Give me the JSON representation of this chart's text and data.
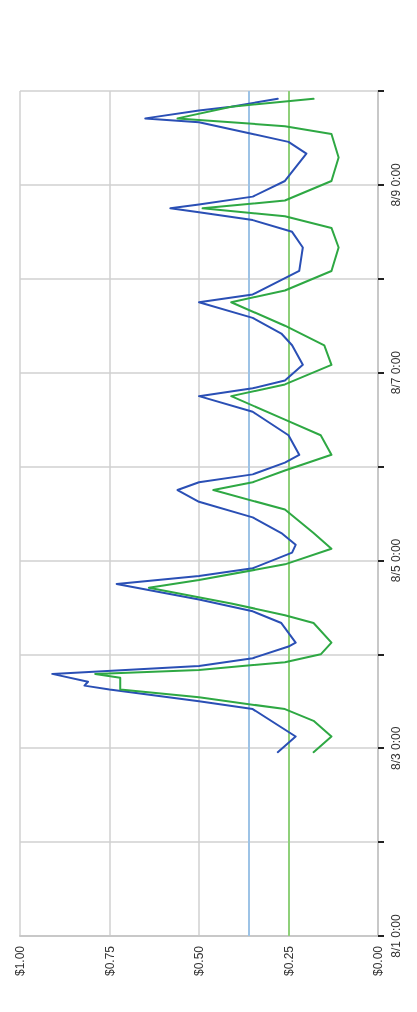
{
  "chart_data": {
    "type": "line",
    "orientation": "horizontal",
    "ylim": [
      "--08-01",
      "--08-10"
    ],
    "yticks": [
      {
        "value": "--08-01",
        "label": "8/1 0:00"
      },
      {
        "value": "--08-02",
        "label": null
      },
      {
        "value": "--08-03",
        "label": "8/3 0:00"
      },
      {
        "value": "--08-04",
        "label": null
      },
      {
        "value": "--08-05",
        "label": "8/5 0:00"
      },
      {
        "value": "--08-06",
        "label": null
      },
      {
        "value": "--08-07",
        "label": "8/7 0:00"
      },
      {
        "value": "--08-08",
        "label": null
      },
      {
        "value": "--08-09",
        "label": "8/9 0:00"
      },
      {
        "value": "--08-10",
        "label": null
      }
    ],
    "xlim": [
      1,
      0
    ],
    "xticks": [
      {
        "value": 1,
        "label": "$1.00"
      },
      {
        "value": 0.75,
        "label": "$0.75"
      },
      {
        "value": 0.5,
        "label": "$0.50"
      },
      {
        "value": 0.25,
        "label": "$0.25"
      },
      {
        "value": 0,
        "label": "$0.00"
      }
    ],
    "grid": true,
    "line_style": "solid",
    "marker": "none",
    "ref_lines": [
      {
        "axis": "x",
        "value": 0.36,
        "color": "#9dc3e6"
      },
      {
        "axis": "x",
        "value": 0.25,
        "color": "#8fd07a"
      }
    ],
    "series": [
      {
        "color": "#2a4fb5",
        "x": [
          "--08-02T23:00",
          "--08-03T03:00",
          "--08-03T10:00",
          "--08-03T12:00",
          "--08-03T15:00",
          "--08-03T16:00",
          "--08-03T17:00",
          "--08-03T19:00",
          "--08-03T21:00",
          "--08-03T23:00",
          "--08-04T02:00",
          "--08-04T03:00",
          "--08-04T08:00",
          "--08-04T11:00",
          "--08-04T14:00",
          "--08-04T18:00",
          "--08-04T20:00",
          "--08-04T22:00",
          "--08-05T02:00",
          "--08-05T04:00",
          "--08-05T07:00",
          "--08-05T11:00",
          "--08-05T15:00",
          "--08-05T18:00",
          "--08-05T20:00",
          "--08-05T22:00",
          "--08-06T01:00",
          "--08-06T03:00",
          "--08-06T08:00",
          "--08-06T14:00",
          "--08-06T18:00",
          "--08-06T20:00",
          "--08-06T22:00",
          "--08-07T02:00",
          "--08-07T07:00",
          "--08-07T10:00",
          "--08-07T14:00",
          "--08-07T18:00",
          "--08-07T20:00",
          "--08-08T02:00",
          "--08-08T08:00",
          "--08-08T12:00",
          "--08-08T15:00",
          "--08-08T17:00",
          "--08-08T18:00",
          "--08-08T19:00",
          "--08-08T21:00",
          "--08-09T01:00",
          "--08-09T08:00",
          "--08-09T11:00",
          "--08-09T13:00",
          "--08-09T16:00",
          "--08-09T17:00",
          "--08-09T19:00",
          "--08-09T20:00",
          "--08-09T22:00"
        ],
        "values": [
          0.28,
          0.23,
          0.35,
          0.5,
          0.75,
          0.82,
          0.81,
          0.91,
          0.5,
          0.35,
          0.25,
          0.23,
          0.27,
          0.35,
          0.5,
          0.73,
          0.5,
          0.35,
          0.24,
          0.23,
          0.27,
          0.35,
          0.5,
          0.56,
          0.5,
          0.35,
          0.26,
          0.22,
          0.25,
          0.35,
          0.5,
          0.35,
          0.26,
          0.21,
          0.24,
          0.27,
          0.35,
          0.5,
          0.35,
          0.22,
          0.21,
          0.24,
          0.35,
          0.5,
          0.58,
          0.5,
          0.35,
          0.26,
          0.2,
          0.25,
          0.35,
          0.5,
          0.65,
          0.5,
          0.41,
          0.28
        ]
      },
      {
        "color": "#2ea843",
        "x": [
          "--08-02T23:00",
          "--08-03T03:00",
          "--08-03T07:00",
          "--08-03T10:00",
          "--08-03T13:00",
          "--08-03T15:00",
          "--08-03T18:00",
          "--08-03T19:00",
          "--08-03T20:00",
          "--08-03T22:00",
          "--08-04T00:00",
          "--08-04T03:00",
          "--08-04T08:00",
          "--08-04T10:00",
          "--08-04T13:00",
          "--08-04T17:00",
          "--08-04T19:00",
          "--08-04T23:00",
          "--08-05T03:00",
          "--08-05T07:00",
          "--08-05T13:00",
          "--08-05T18:00",
          "--08-05T20:00",
          "--08-05T23:00",
          "--08-06T03:00",
          "--08-06T08:00",
          "--08-06T12:00",
          "--08-06T18:00",
          "--08-06T21:00",
          "--08-07T02:00",
          "--08-07T07:00",
          "--08-07T12:00",
          "--08-07T18:00",
          "--08-07T21:00",
          "--08-08T02:00",
          "--08-08T08:00",
          "--08-08T13:00",
          "--08-08T16:00",
          "--08-08T18:00",
          "--08-08T20:00",
          "--08-09T01:00",
          "--08-09T07:00",
          "--08-09T13:00",
          "--08-09T15:00",
          "--08-09T17:00",
          "--08-09T20:00",
          "--08-09T22:00"
        ],
        "values": [
          0.18,
          0.13,
          0.18,
          0.26,
          0.5,
          0.72,
          0.72,
          0.79,
          0.5,
          0.26,
          0.16,
          0.13,
          0.18,
          0.26,
          0.41,
          0.64,
          0.5,
          0.26,
          0.13,
          0.18,
          0.26,
          0.46,
          0.35,
          0.26,
          0.13,
          0.16,
          0.26,
          0.41,
          0.26,
          0.13,
          0.15,
          0.26,
          0.41,
          0.26,
          0.13,
          0.11,
          0.13,
          0.26,
          0.49,
          0.26,
          0.13,
          0.11,
          0.13,
          0.26,
          0.56,
          0.41,
          0.18
        ]
      }
    ]
  }
}
